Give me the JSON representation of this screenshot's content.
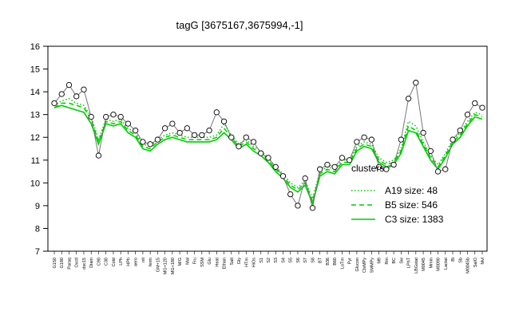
{
  "chart_data": {
    "type": "line",
    "title": "tagG [3675167,3675994,-1]",
    "xlabel": "",
    "ylabel": "",
    "ylim": [
      7,
      16
    ],
    "yticks": [
      7,
      8,
      9,
      10,
      11,
      12,
      13,
      14,
      15,
      16
    ],
    "grid": false,
    "legend_position": "right",
    "x_tick_labels": [
      "G150",
      "G180",
      "Paraq",
      "Oxctl",
      "dsc15",
      "Diam",
      "C90",
      "C30",
      "Cold",
      "LPh",
      "HPh",
      "aero",
      "nit",
      "ferm",
      "GM+15",
      "MG+120",
      "MG+180",
      "M/G",
      "Mal",
      "Fru",
      "SSM",
      "Glu",
      "Heat",
      "Ethan",
      "Salt",
      "Gly",
      "HTm",
      "HiOs",
      "S1",
      "S2",
      "S3",
      "S4",
      "S5",
      "S6",
      "S7",
      "S8",
      "BT",
      "B36",
      "B60",
      "LoTm",
      "Pyr",
      "Glucon",
      "ClsMPy",
      "SMMPy",
      "M9",
      "Rm",
      "BC",
      "Sw",
      "LPhT",
      "LBGstat",
      "M0045",
      "Mmin",
      "M0090",
      "Lactat",
      "Bl",
      "Sb",
      "M0045b",
      "SalO",
      "Mvl"
    ],
    "legend_title": "clusters",
    "series": [
      {
        "name": "A19 size: 48",
        "style": "dotted",
        "color": "#00cc00",
        "values": [
          13.4,
          13.6,
          13.7,
          13.5,
          13.4,
          12.9,
          11.9,
          12.8,
          12.7,
          12.8,
          12.4,
          12.2,
          11.7,
          11.6,
          11.9,
          12.1,
          12.2,
          12.1,
          12.0,
          12.0,
          12.0,
          12.0,
          12.1,
          12.6,
          12.1,
          11.7,
          11.9,
          11.6,
          11.4,
          11.1,
          10.7,
          10.4,
          10.0,
          9.8,
          10.1,
          9.3,
          10.5,
          10.7,
          10.6,
          11.0,
          11.0,
          11.6,
          11.8,
          11.7,
          11.1,
          10.9,
          11.0,
          11.5,
          12.7,
          12.5,
          11.8,
          11.2,
          10.8,
          11.3,
          11.9,
          12.2,
          12.7,
          13.1,
          13.0
        ]
      },
      {
        "name": "B5 size: 546",
        "style": "dashed",
        "color": "#00cc00",
        "values": [
          13.3,
          13.5,
          13.5,
          13.4,
          13.3,
          12.8,
          11.8,
          12.7,
          12.6,
          12.7,
          12.3,
          12.1,
          11.6,
          11.5,
          11.8,
          12.0,
          12.1,
          12.0,
          11.9,
          11.9,
          11.9,
          11.9,
          12.0,
          12.4,
          12.0,
          11.6,
          11.8,
          11.5,
          11.3,
          11.0,
          10.6,
          10.3,
          9.9,
          9.7,
          10.0,
          9.2,
          10.4,
          10.6,
          10.5,
          10.9,
          10.9,
          11.5,
          11.7,
          11.6,
          11.0,
          10.8,
          10.9,
          11.4,
          12.5,
          12.3,
          11.7,
          11.1,
          10.7,
          11.2,
          11.8,
          12.1,
          12.6,
          13.0,
          12.9
        ]
      },
      {
        "name": "C3 size: 1383",
        "style": "solid",
        "color": "#00cc00",
        "values": [
          13.3,
          13.4,
          13.3,
          13.2,
          13.1,
          12.6,
          11.7,
          12.6,
          12.5,
          12.6,
          12.2,
          12.0,
          11.5,
          11.4,
          11.7,
          11.9,
          12.0,
          11.9,
          11.8,
          11.8,
          11.8,
          11.8,
          11.9,
          12.2,
          11.9,
          11.5,
          11.7,
          11.4,
          11.2,
          10.9,
          10.5,
          10.2,
          9.8,
          9.6,
          9.9,
          9.1,
          10.3,
          10.5,
          10.4,
          10.8,
          10.8,
          11.4,
          11.6,
          11.5,
          10.9,
          10.7,
          10.8,
          11.3,
          12.3,
          12.2,
          11.6,
          11.0,
          10.6,
          11.1,
          11.7,
          12.0,
          12.5,
          12.9,
          12.8
        ]
      }
    ],
    "points": [
      13.5,
      13.9,
      14.3,
      13.8,
      14.1,
      12.9,
      11.2,
      12.9,
      13.0,
      12.9,
      12.6,
      12.3,
      11.8,
      11.7,
      11.9,
      12.4,
      12.6,
      12.2,
      12.4,
      12.1,
      12.1,
      12.3,
      13.1,
      12.7,
      12.0,
      11.6,
      12.0,
      11.8,
      11.3,
      11.1,
      10.7,
      10.3,
      9.5,
      9.0,
      10.2,
      8.9,
      10.6,
      10.8,
      10.7,
      11.1,
      11.0,
      11.8,
      12.0,
      11.9,
      10.7,
      10.6,
      10.8,
      11.9,
      13.7,
      14.4,
      12.2,
      11.4,
      10.5,
      10.6,
      11.9,
      12.3,
      13.0,
      13.5,
      13.3
    ]
  }
}
